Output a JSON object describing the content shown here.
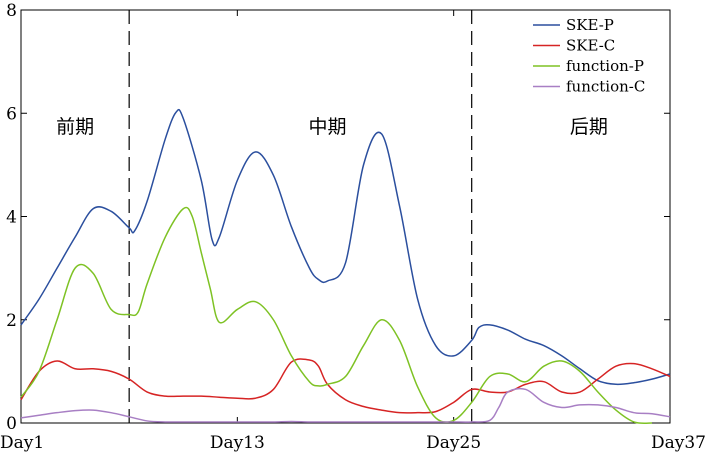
{
  "chart_data": {
    "type": "line",
    "x_categories": [
      "Day1",
      "Day13",
      "Day25",
      "Day37"
    ],
    "x_range": [
      1,
      37
    ],
    "ylim": [
      0,
      8
    ],
    "y_ticks": [
      "0",
      "2",
      "4",
      "6",
      "8"
    ],
    "y_tick_values": [
      0,
      2,
      4,
      6,
      8
    ],
    "x_tick_values": [
      1,
      13,
      25,
      37
    ],
    "grid": false,
    "legend_position": "top-right",
    "phase_boundaries": [
      7,
      26
    ],
    "phases": [
      {
        "label": "前期",
        "x": 4
      },
      {
        "label": "中期",
        "x": 18
      },
      {
        "label": "后期",
        "x": 32.5
      }
    ],
    "series": [
      {
        "name": "SKE-P",
        "color": "#2b4f9e",
        "x": [
          1,
          2,
          3,
          4,
          5,
          6,
          7,
          7.3,
          8,
          9,
          9.6,
          10,
          11,
          11.6,
          12,
          13,
          14,
          15,
          16,
          17,
          17.5,
          18,
          19,
          20,
          21,
          22,
          23,
          24,
          25,
          26,
          26.4,
          27,
          28,
          29,
          30,
          31,
          32,
          33,
          34,
          35,
          36,
          37
        ],
        "values": [
          1.9,
          2.4,
          3.0,
          3.6,
          4.15,
          4.1,
          3.78,
          3.72,
          4.3,
          5.5,
          6.02,
          5.9,
          4.7,
          3.55,
          3.6,
          4.7,
          5.25,
          4.8,
          3.8,
          3.0,
          2.78,
          2.75,
          3.1,
          5.0,
          5.6,
          4.2,
          2.4,
          1.5,
          1.3,
          1.6,
          1.85,
          1.9,
          1.8,
          1.62,
          1.5,
          1.3,
          1.05,
          0.82,
          0.75,
          0.78,
          0.85,
          0.95
        ]
      },
      {
        "name": "SKE-C",
        "color": "#d62424",
        "x": [
          1,
          2,
          3,
          4,
          5,
          6,
          7,
          8,
          9,
          10,
          11,
          12,
          13,
          14,
          15,
          16,
          17,
          17.5,
          18,
          19,
          20,
          21,
          22,
          23,
          24,
          25,
          26,
          27,
          28,
          29,
          30,
          31,
          32,
          33,
          34,
          35,
          36,
          37
        ],
        "values": [
          0.45,
          1.0,
          1.2,
          1.05,
          1.05,
          1.0,
          0.85,
          0.6,
          0.52,
          0.52,
          0.52,
          0.5,
          0.48,
          0.48,
          0.65,
          1.18,
          1.22,
          1.1,
          0.75,
          0.45,
          0.32,
          0.25,
          0.2,
          0.2,
          0.22,
          0.4,
          0.65,
          0.6,
          0.6,
          0.75,
          0.8,
          0.6,
          0.6,
          0.85,
          1.1,
          1.15,
          1.05,
          0.9
        ]
      },
      {
        "name": "function-P",
        "color": "#7ec224",
        "x": [
          1,
          2,
          3,
          4,
          5,
          6,
          7,
          7.5,
          8,
          9,
          10,
          10.5,
          11,
          11.5,
          12,
          13,
          14,
          15,
          16,
          17,
          17.5,
          18,
          19,
          20,
          21,
          22,
          23,
          24,
          25,
          26,
          27,
          28,
          29,
          30,
          31,
          32,
          33,
          34,
          35,
          36
        ],
        "values": [
          0.5,
          1.0,
          2.0,
          3.0,
          2.9,
          2.2,
          2.1,
          2.15,
          2.7,
          3.6,
          4.15,
          4.0,
          3.3,
          2.6,
          1.95,
          2.2,
          2.35,
          2.0,
          1.3,
          0.8,
          0.72,
          0.75,
          0.9,
          1.5,
          2.0,
          1.6,
          0.7,
          0.1,
          0.05,
          0.4,
          0.9,
          0.95,
          0.8,
          1.1,
          1.2,
          1.0,
          0.6,
          0.25,
          0.02,
          0.0
        ]
      },
      {
        "name": "function-C",
        "color": "#a87fc4",
        "x": [
          1,
          2,
          3,
          4,
          5,
          6,
          7,
          8,
          9,
          10,
          11,
          12,
          13,
          14,
          15,
          16,
          17,
          18,
          19,
          20,
          21,
          22,
          23,
          24,
          25,
          26,
          27,
          27.5,
          28,
          29,
          30,
          31,
          32,
          33,
          34,
          35,
          36,
          37
        ],
        "values": [
          0.1,
          0.15,
          0.2,
          0.24,
          0.25,
          0.2,
          0.12,
          0.04,
          0.02,
          0.02,
          0.02,
          0.02,
          0.02,
          0.02,
          0.02,
          0.03,
          0.02,
          0.02,
          0.02,
          0.02,
          0.02,
          0.02,
          0.02,
          0.02,
          0.02,
          0.02,
          0.05,
          0.3,
          0.6,
          0.65,
          0.4,
          0.3,
          0.35,
          0.35,
          0.3,
          0.2,
          0.18,
          0.12
        ]
      }
    ]
  }
}
